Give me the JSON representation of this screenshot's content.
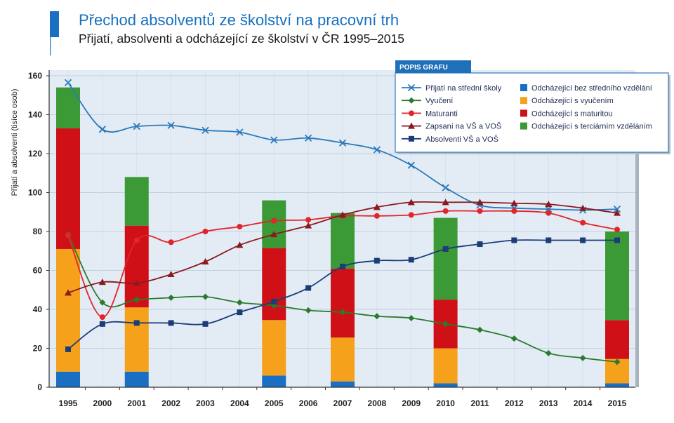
{
  "chart_data": {
    "type": "bar",
    "stacked": true,
    "title": "Přechod absolventů ze školství na pracovní trh",
    "subtitle": "Přijatí, absolventi a odcházející ze školství v ČR 1995–2015",
    "ylabel": "Přijatí a absolventi (tisíce osob)",
    "ylim": [
      0,
      160
    ],
    "yticks": [
      0,
      20,
      40,
      60,
      80,
      100,
      120,
      140,
      160
    ],
    "grid": true,
    "legend_title": "POPIS GRAFU",
    "legend_position": "top-right",
    "categories": [
      "1995",
      "2000",
      "2001",
      "2002",
      "2003",
      "2004",
      "2005",
      "2006",
      "2007",
      "2008",
      "2009",
      "2010",
      "2011",
      "2012",
      "2013",
      "2014",
      "2015"
    ],
    "line_series": [
      {
        "name": "Přijatí na střední školy",
        "color": "#2b79bb",
        "marker": "x",
        "values": [
          156.5,
          132.5,
          134,
          134.5,
          132,
          131,
          127,
          128,
          125.5,
          122,
          114,
          102.5,
          93.5,
          92,
          91.5,
          91,
          91.5
        ]
      },
      {
        "name": "Vyučení",
        "color": "#2b7a2e",
        "marker": "diamond",
        "values": [
          78.5,
          43.5,
          45,
          46,
          46.5,
          43.5,
          42,
          39.5,
          38.5,
          36.5,
          35.5,
          32.5,
          29.5,
          25,
          17.5,
          15,
          13
        ]
      },
      {
        "name": "Maturanti",
        "color": "#e3242b",
        "marker": "circle",
        "values": [
          78,
          36,
          75.5,
          74.5,
          80,
          82.5,
          85.5,
          86,
          88,
          88,
          88.5,
          90.5,
          90.5,
          90.5,
          89.5,
          84.5,
          81
        ]
      },
      {
        "name": "Zapsaní na VŠ a VOŠ",
        "color": "#8b1a1f",
        "marker": "triangle",
        "values": [
          48.5,
          54,
          53.5,
          58,
          64.5,
          73,
          78.5,
          83,
          88.5,
          92.5,
          95,
          95,
          95,
          94.5,
          94,
          92,
          89.5
        ]
      },
      {
        "name": "Absolventi VŠ a VOŠ",
        "color": "#1c3c78",
        "marker": "square",
        "values": [
          19.5,
          32.5,
          33,
          33,
          32.5,
          38.5,
          44,
          51,
          62,
          65,
          65.5,
          71,
          73.5,
          75.5,
          75.5,
          75.5,
          75.5
        ]
      }
    ],
    "bar_series": [
      {
        "name": "Odcházející bez středního vzdělání",
        "color": "#1b6fc3",
        "values": [
          8,
          null,
          8,
          null,
          null,
          null,
          6,
          null,
          3,
          null,
          null,
          2,
          null,
          null,
          null,
          null,
          2
        ]
      },
      {
        "name": "Odcházející s vyučením",
        "color": "#f5a11c",
        "values": [
          63,
          null,
          33,
          null,
          null,
          null,
          28.5,
          null,
          22.5,
          null,
          null,
          18,
          null,
          null,
          null,
          null,
          12.5
        ]
      },
      {
        "name": "Odcházející s maturitou",
        "color": "#cf1117",
        "values": [
          62,
          null,
          42,
          null,
          null,
          null,
          37,
          null,
          35.5,
          null,
          null,
          25,
          null,
          null,
          null,
          null,
          20
        ]
      },
      {
        "name": "Odcházející s terciárním vzděláním",
        "color": "#3b9a36",
        "values": [
          21,
          null,
          25,
          null,
          null,
          null,
          24.5,
          null,
          28.5,
          null,
          null,
          42,
          null,
          null,
          null,
          null,
          45.5
        ]
      }
    ]
  }
}
